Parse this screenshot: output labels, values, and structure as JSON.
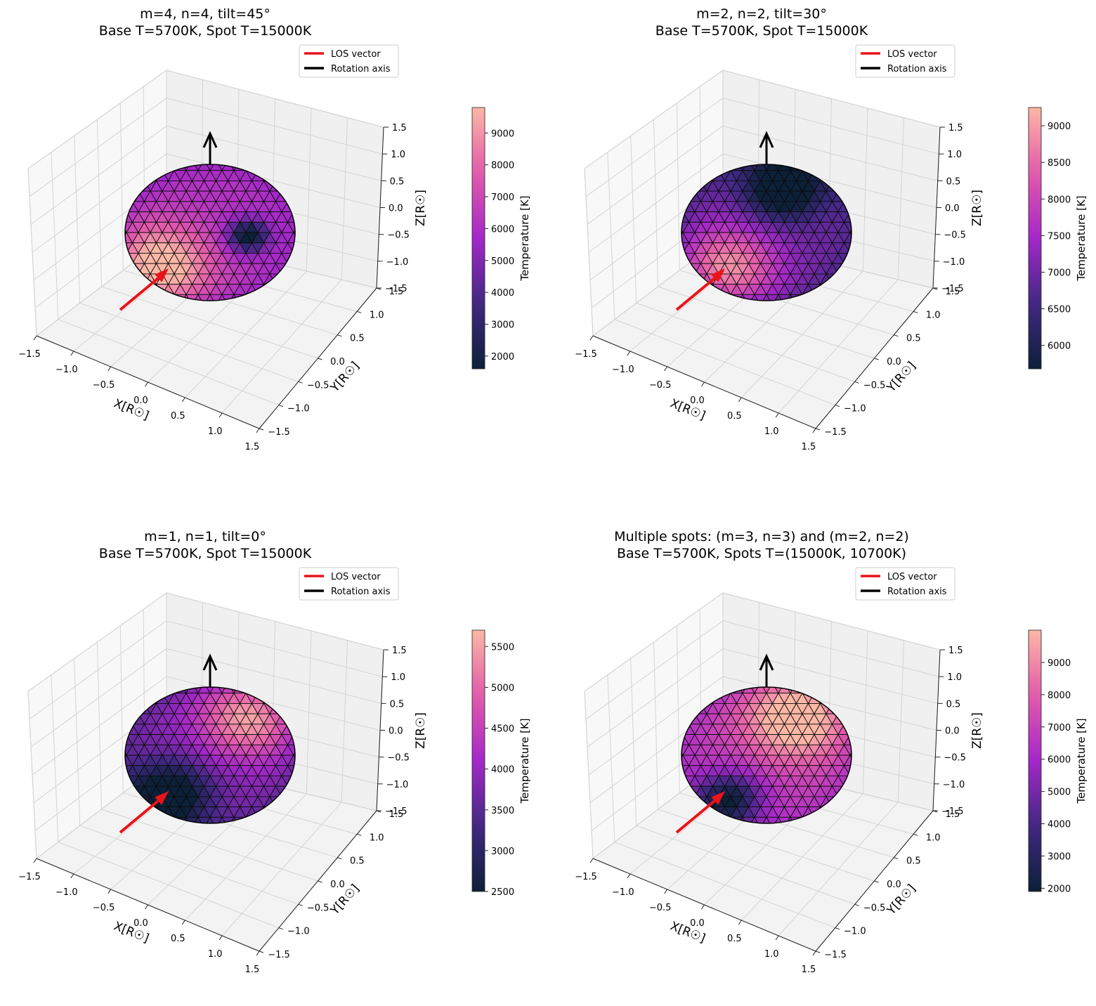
{
  "chart_data": [
    {
      "type": "surface3d",
      "title_line1": "m=4, n=4, tilt=45°",
      "title_line2": "Base T=5700K, Spot T=15000K",
      "xlabel": "X[R☉]",
      "ylabel": "Y[R☉]",
      "zlabel": "Z[R☉]",
      "xlim": [
        -1.5,
        1.5
      ],
      "ylim": [
        -1.5,
        1.5
      ],
      "zlim": [
        -1.5,
        1.5
      ],
      "x_ticks": [
        "−1.5",
        "−1.0",
        "−0.5",
        "0.0",
        "0.5",
        "1.0",
        "1.5"
      ],
      "y_ticks": [
        "−1.5",
        "−1.0",
        "−0.5",
        "0.0",
        "0.5",
        "1.0",
        "1.5"
      ],
      "z_ticks": [
        "−1.5",
        "−1.0",
        "−0.5",
        "0.0",
        "0.5",
        "1.0",
        "1.5"
      ],
      "legend": [
        "LOS vector",
        "Rotation axis"
      ],
      "legend_position": "top-right",
      "legend_colors": [
        "#e8141a",
        "#000000"
      ],
      "colorbar": {
        "label": "Temperature [K]",
        "min": 1600,
        "max": 9800,
        "ticks": [
          2000,
          3000,
          4000,
          5000,
          6000,
          7000,
          8000,
          9000
        ],
        "colormap": "magma-like"
      },
      "grid": true
    },
    {
      "type": "surface3d",
      "title_line1": "m=2, n=2, tilt=30°",
      "title_line2": "Base T=5700K, Spot T=15000K",
      "xlabel": "X[R☉]",
      "ylabel": "Y[R☉]",
      "zlabel": "Z[R☉]",
      "xlim": [
        -1.5,
        1.5
      ],
      "ylim": [
        -1.5,
        1.5
      ],
      "zlim": [
        -1.5,
        1.5
      ],
      "x_ticks": [
        "−1.5",
        "−1.0",
        "−0.5",
        "0.0",
        "0.5",
        "1.0",
        "1.5"
      ],
      "y_ticks": [
        "−1.5",
        "−1.0",
        "−0.5",
        "0.0",
        "0.5",
        "1.0",
        "1.5"
      ],
      "z_ticks": [
        "−1.5",
        "−1.0",
        "−0.5",
        "0.0",
        "0.5",
        "1.0",
        "1.5"
      ],
      "legend": [
        "LOS vector",
        "Rotation axis"
      ],
      "legend_position": "top-right",
      "legend_colors": [
        "#e8141a",
        "#000000"
      ],
      "colorbar": {
        "label": "Temperature [K]",
        "min": 5680,
        "max": 9250,
        "ticks": [
          6000,
          6500,
          7000,
          7500,
          8000,
          8500,
          9000
        ],
        "colormap": "magma-like"
      },
      "grid": true
    },
    {
      "type": "surface3d",
      "title_line1": "m=1, n=1, tilt=0°",
      "title_line2": "Base T=5700K, Spot T=15000K",
      "xlabel": "X[R☉]",
      "ylabel": "Y[R☉]",
      "zlabel": "Z[R☉]",
      "xlim": [
        -1.5,
        1.5
      ],
      "ylim": [
        -1.5,
        1.5
      ],
      "zlim": [
        -1.5,
        1.5
      ],
      "x_ticks": [
        "−1.5",
        "−1.0",
        "−0.5",
        "0.0",
        "0.5",
        "1.0",
        "1.5"
      ],
      "y_ticks": [
        "−1.5",
        "−1.0",
        "−0.5",
        "0.0",
        "0.5",
        "1.0",
        "1.5"
      ],
      "z_ticks": [
        "−1.5",
        "−1.0",
        "−0.5",
        "0.0",
        "0.5",
        "1.0",
        "1.5"
      ],
      "legend": [
        "LOS vector",
        "Rotation axis"
      ],
      "legend_position": "top-right",
      "legend_colors": [
        "#e8141a",
        "#000000"
      ],
      "colorbar": {
        "label": "Temperature [K]",
        "min": 2500,
        "max": 5700,
        "ticks": [
          2500,
          3000,
          3500,
          4000,
          4500,
          5000,
          5500
        ],
        "colormap": "magma-like"
      },
      "grid": true
    },
    {
      "type": "surface3d",
      "title_line1": "Multiple spots: (m=3, n=3) and (m=2, n=2)",
      "title_line2": "Base T=5700K, Spots T=(15000K, 10700K)",
      "xlabel": "X[R☉]",
      "ylabel": "Y[R☉]",
      "zlabel": "Z[R☉]",
      "xlim": [
        -1.5,
        1.5
      ],
      "ylim": [
        -1.5,
        1.5
      ],
      "zlim": [
        -1.5,
        1.5
      ],
      "x_ticks": [
        "−1.5",
        "−1.0",
        "−0.5",
        "0.0",
        "0.5",
        "1.0",
        "1.5"
      ],
      "y_ticks": [
        "−1.5",
        "−1.0",
        "−0.5",
        "0.0",
        "0.5",
        "1.0",
        "1.5"
      ],
      "z_ticks": [
        "−1.5",
        "−1.0",
        "−0.5",
        "0.0",
        "0.5",
        "1.0",
        "1.5"
      ],
      "legend": [
        "LOS vector",
        "Rotation axis"
      ],
      "legend_position": "top-right",
      "legend_colors": [
        "#e8141a",
        "#000000"
      ],
      "colorbar": {
        "label": "Temperature [K]",
        "min": 1900,
        "max": 10000,
        "ticks": [
          2000,
          3000,
          4000,
          5000,
          6000,
          7000,
          8000,
          9000
        ],
        "colormap": "magma-like"
      },
      "grid": true
    }
  ]
}
